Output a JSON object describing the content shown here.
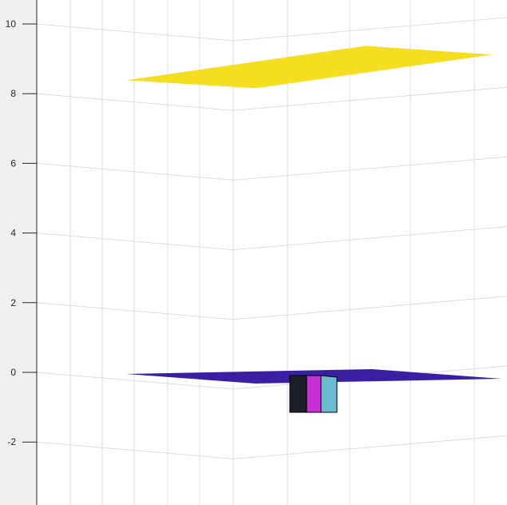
{
  "chart_data": {
    "type": "surface3d",
    "title": "",
    "xlabel": "",
    "ylabel": "",
    "zlabel": "",
    "zlim": [
      -3.8,
      10.5
    ],
    "z_ticks": [
      10,
      8,
      6,
      4,
      2,
      0,
      -2
    ],
    "z_tick_labels": [
      "10",
      "8",
      "6",
      "4",
      "2",
      "0",
      "-2"
    ],
    "grid": true,
    "series": [
      {
        "kind": "plane",
        "z": 8.5,
        "color": "#f5dd1f"
      },
      {
        "kind": "plane",
        "z": 0,
        "color": "#3a1fa3"
      },
      {
        "kind": "box",
        "z_top": 0,
        "z_bottom": -1.1,
        "face_colors": [
          "#1a1f28",
          "#c92fd6",
          "#6cbcd0"
        ]
      }
    ]
  }
}
